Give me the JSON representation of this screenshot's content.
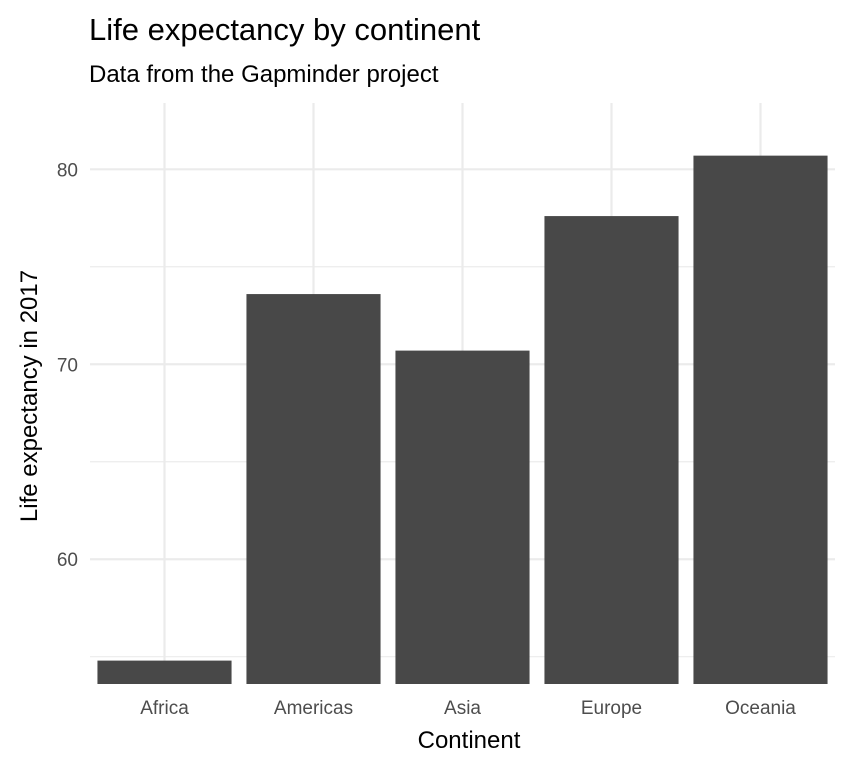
{
  "chart_data": {
    "type": "bar",
    "title": "Life expectancy by continent",
    "subtitle": "Data from the Gapminder project",
    "xlabel": "Continent",
    "ylabel": "Life expectancy in 2017",
    "categories": [
      "Africa",
      "Americas",
      "Asia",
      "Europe",
      "Oceania"
    ],
    "values": [
      54.8,
      73.6,
      70.7,
      77.6,
      80.7
    ],
    "ylim": [
      53.6,
      83.4
    ],
    "yticks": [
      60,
      70,
      80
    ],
    "ytick_labels": [
      "60",
      "70",
      "80"
    ],
    "minor_yticks": [
      55,
      65,
      75
    ],
    "grid": true,
    "colors": {
      "bar": "#484848",
      "grid": "#ebebeb",
      "text": "#000000",
      "tick_text": "#4d4d4d"
    }
  }
}
